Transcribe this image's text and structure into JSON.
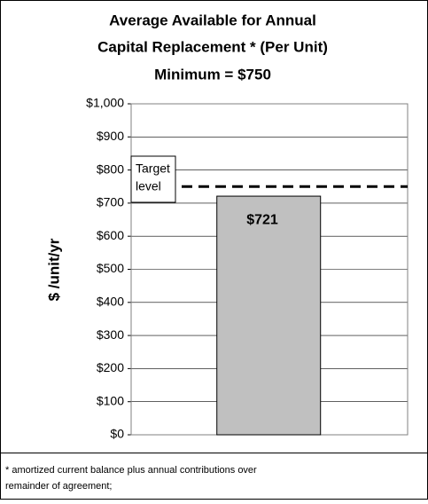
{
  "chart_data": {
    "type": "bar",
    "title": [
      "Average Available for Annual",
      "Capital Replacement * (Per Unit)"
    ],
    "subtitle": "Minimum = $750",
    "y_label": "$ /unit/yr",
    "categories": [
      null
    ],
    "values": [
      721
    ],
    "value_labels": [
      "$721"
    ],
    "color": "#c0c0c0",
    "ylim": [
      0,
      1000
    ],
    "yticks": [
      {
        "value": 0,
        "label": "$0"
      },
      {
        "value": 100,
        "label": "$100"
      },
      {
        "value": 200,
        "label": "$200"
      },
      {
        "value": 300,
        "label": "$300"
      },
      {
        "value": 400,
        "label": "$400"
      },
      {
        "value": 500,
        "label": "$500"
      },
      {
        "value": 600,
        "label": "$600"
      },
      {
        "value": 700,
        "label": "$700"
      },
      {
        "value": 800,
        "label": "$800"
      },
      {
        "value": 900,
        "label": "$900"
      },
      {
        "value": 1000,
        "label": "$1,000"
      }
    ],
    "grid": true,
    "target": {
      "value": 750,
      "label": [
        "Target",
        "level"
      ]
    },
    "footnote": [
      "* amortized current balance plus annual contributions over",
      "remainder of agreement;"
    ]
  }
}
